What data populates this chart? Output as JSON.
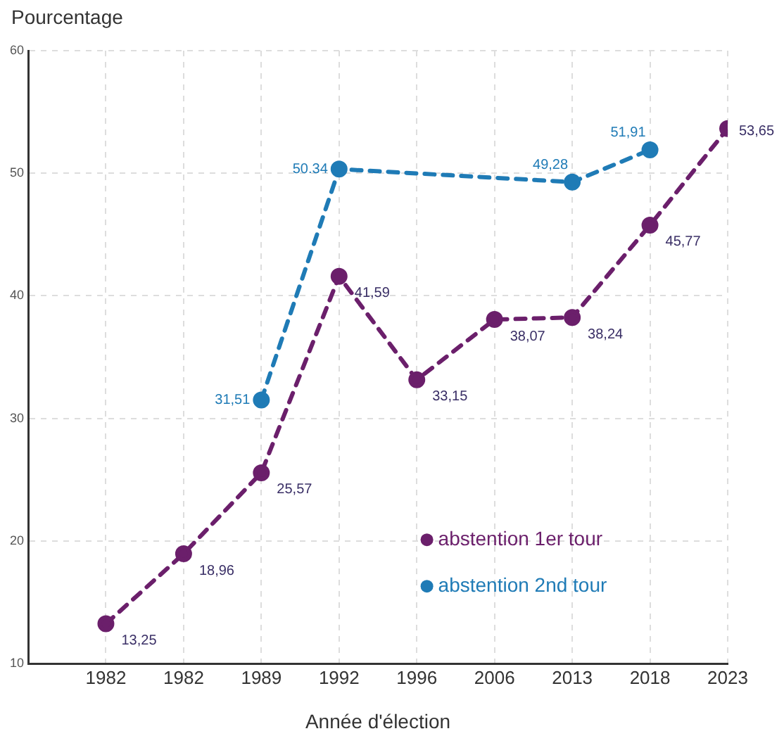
{
  "chart_data": {
    "type": "line",
    "xlabel": "Année d'élection",
    "ylabel": "Pourcentage",
    "categories": [
      "1982",
      "1982",
      "1989",
      "1992",
      "1996",
      "2006",
      "2013",
      "2018",
      "2023"
    ],
    "series": [
      {
        "name": "abstention 1er tour",
        "color": "#6b1f6b",
        "values": [
          13.25,
          18.96,
          25.57,
          41.59,
          33.15,
          38.07,
          38.24,
          45.77,
          53.65
        ],
        "value_labels": [
          "13,25",
          "18,96",
          "25,57",
          "41,59",
          "33,15",
          "38,07",
          "38,24",
          "45,77",
          "53,65"
        ]
      },
      {
        "name": "abstention 2nd tour",
        "color": "#1f7bb6",
        "values": [
          null,
          null,
          31.51,
          50.34,
          null,
          null,
          49.28,
          51.91,
          null
        ],
        "value_labels": [
          null,
          null,
          "31,51",
          "50.34",
          null,
          null,
          "49,28",
          "51,91",
          null
        ]
      }
    ],
    "ylim": [
      10,
      60
    ],
    "yticks": [
      10,
      20,
      30,
      40,
      50,
      60
    ],
    "grid": true,
    "legend": "bottom right",
    "marker": "circle",
    "line_style": "dashed"
  }
}
